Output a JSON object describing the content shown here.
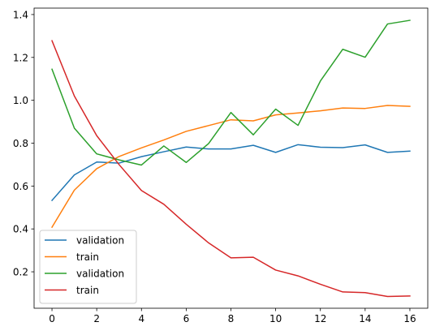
{
  "chart_data": {
    "type": "line",
    "title": "",
    "xlabel": "",
    "ylabel": "",
    "xlim": [
      -0.8,
      16.8
    ],
    "ylim": [
      0.03,
      1.43
    ],
    "xticks": [
      0,
      2,
      4,
      6,
      8,
      10,
      12,
      14,
      16
    ],
    "yticks": [
      0.2,
      0.4,
      0.6,
      0.8,
      1.0,
      1.2,
      1.4
    ],
    "grid": false,
    "legend_position": "lower-left",
    "x": [
      0,
      1,
      2,
      3,
      4,
      5,
      6,
      7,
      8,
      9,
      10,
      11,
      12,
      13,
      14,
      15,
      16
    ],
    "series": [
      {
        "name": "validation",
        "color": "#1f77b4",
        "values": [
          0.533,
          0.652,
          0.712,
          0.707,
          0.737,
          0.76,
          0.782,
          0.773,
          0.773,
          0.79,
          0.757,
          0.793,
          0.781,
          0.779,
          0.792,
          0.757,
          0.763
        ]
      },
      {
        "name": "train",
        "color": "#ff7f0e",
        "values": [
          0.408,
          0.581,
          0.681,
          0.738,
          0.778,
          0.815,
          0.855,
          0.882,
          0.909,
          0.904,
          0.932,
          0.941,
          0.951,
          0.964,
          0.962,
          0.976,
          0.972
        ]
      },
      {
        "name": "validation",
        "color": "#2ca02c",
        "values": [
          1.145,
          0.87,
          0.75,
          0.722,
          0.698,
          0.787,
          0.71,
          0.798,
          0.943,
          0.839,
          0.959,
          0.883,
          1.09,
          1.238,
          1.201,
          1.356,
          1.373
        ]
      },
      {
        "name": "train",
        "color": "#d62728",
        "values": [
          1.278,
          1.02,
          0.835,
          0.7,
          0.579,
          0.515,
          0.422,
          0.335,
          0.265,
          0.268,
          0.208,
          0.181,
          0.142,
          0.106,
          0.103,
          0.085,
          0.087
        ]
      }
    ]
  }
}
